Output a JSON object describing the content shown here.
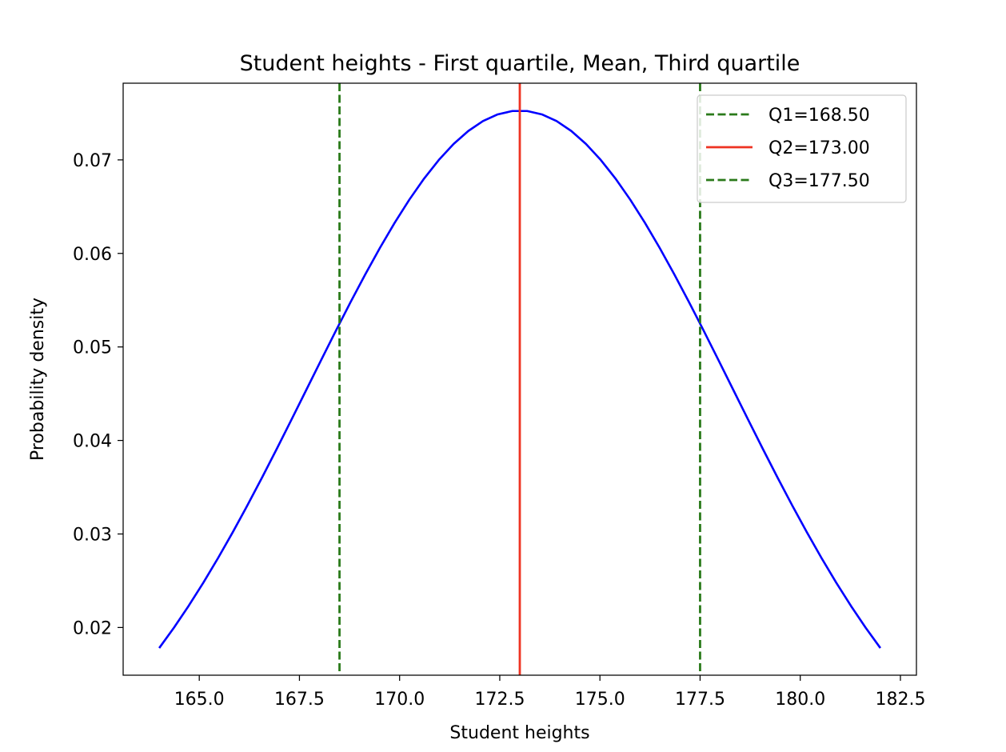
{
  "chart_data": {
    "type": "line",
    "title": "Student heights - First quartile, Mean, Third quartile",
    "xlabel": "Student heights",
    "ylabel": "Probability density",
    "xlim": [
      163.1,
      182.9
    ],
    "ylim": [
      0.0149,
      0.0782
    ],
    "xticks": [
      165.0,
      167.5,
      170.0,
      172.5,
      175.0,
      177.5,
      180.0,
      182.5
    ],
    "xtick_labels": [
      "165.0",
      "167.5",
      "170.0",
      "172.5",
      "175.0",
      "177.5",
      "180.0",
      "182.5"
    ],
    "yticks": [
      0.02,
      0.03,
      0.04,
      0.05,
      0.06,
      0.07
    ],
    "ytick_labels": [
      "0.02",
      "0.03",
      "0.04",
      "0.05",
      "0.06",
      "0.07"
    ],
    "grid": false,
    "legend_position": "top-right",
    "curve": {
      "color": "#0000ff",
      "distribution": "normal",
      "mean": 173.0,
      "std": 5.3,
      "x_start": 164.0,
      "x_end": 182.0,
      "num_points": 50
    },
    "vlines": [
      {
        "name": "Q1=168.50",
        "x": 168.5,
        "color": "#2a7a1a",
        "style": "dashed"
      },
      {
        "name": "Q2=173.00",
        "x": 173.0,
        "color": "#ee3322",
        "style": "solid"
      },
      {
        "name": "Q3=177.50",
        "x": 177.5,
        "color": "#2a7a1a",
        "style": "dashed"
      }
    ]
  }
}
